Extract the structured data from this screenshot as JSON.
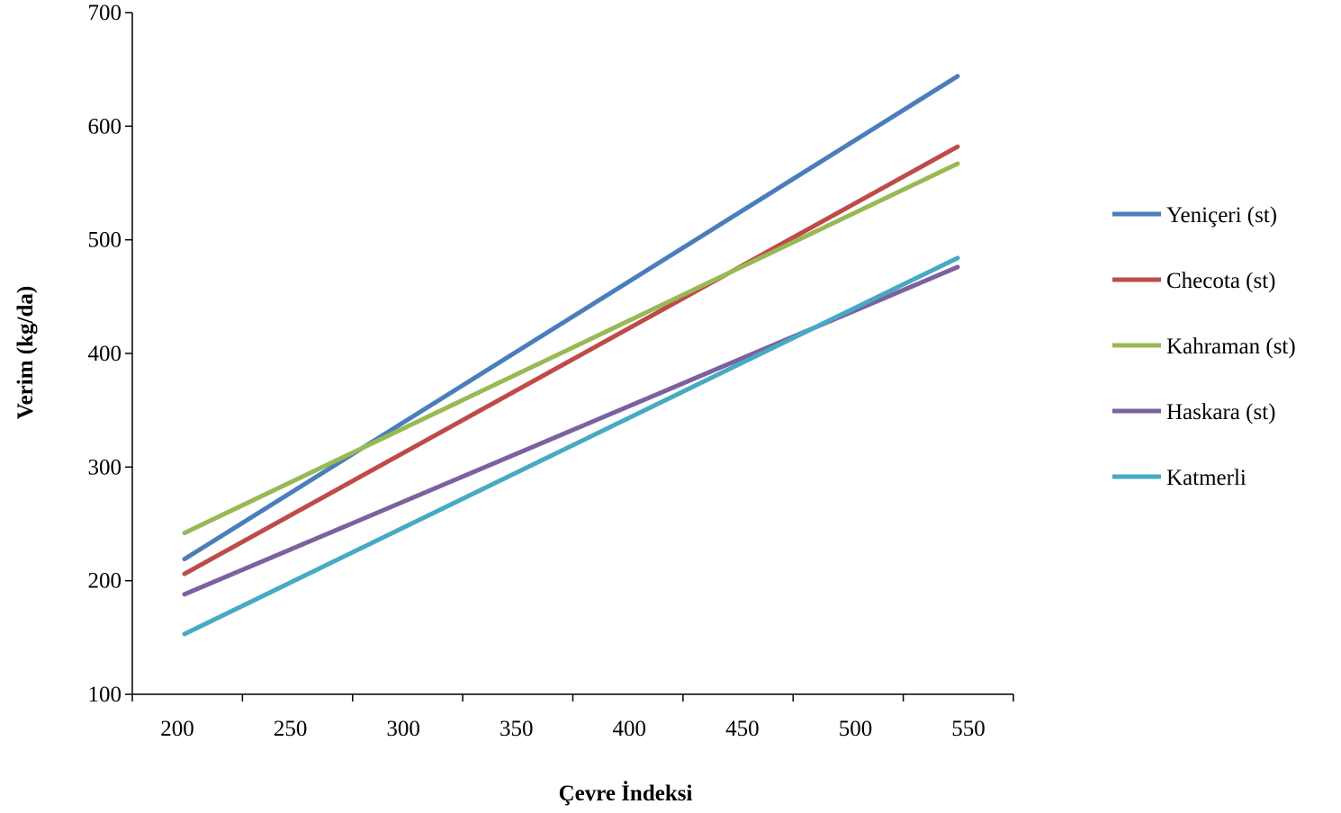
{
  "chart_data": {
    "type": "line",
    "title": "",
    "xlabel": "Çevre İndeksi",
    "ylabel": "Verim (kg/da)",
    "xlim": [
      150,
      600
    ],
    "ylim": [
      100,
      700
    ],
    "xticks": [
      200,
      250,
      300,
      350,
      400,
      450,
      500,
      550
    ],
    "yticks": [
      100,
      200,
      300,
      400,
      500,
      600,
      700
    ],
    "grid": false,
    "legend_position": "right",
    "x": [
      200,
      550
    ],
    "series": [
      {
        "name": "Yeniçeri (st)",
        "color": "#4A7EBB",
        "values": [
          219,
          644
        ]
      },
      {
        "name": "Checota (st)",
        "color": "#BE4B48",
        "values": [
          206,
          582
        ]
      },
      {
        "name": "Kahraman (st)",
        "color": "#98B954",
        "values": [
          242,
          567
        ]
      },
      {
        "name": "Haskara (st)",
        "color": "#7D60A0",
        "values": [
          188,
          476
        ]
      },
      {
        "name": "Katmerli",
        "color": "#46AAC5",
        "values": [
          153,
          484
        ]
      }
    ]
  }
}
